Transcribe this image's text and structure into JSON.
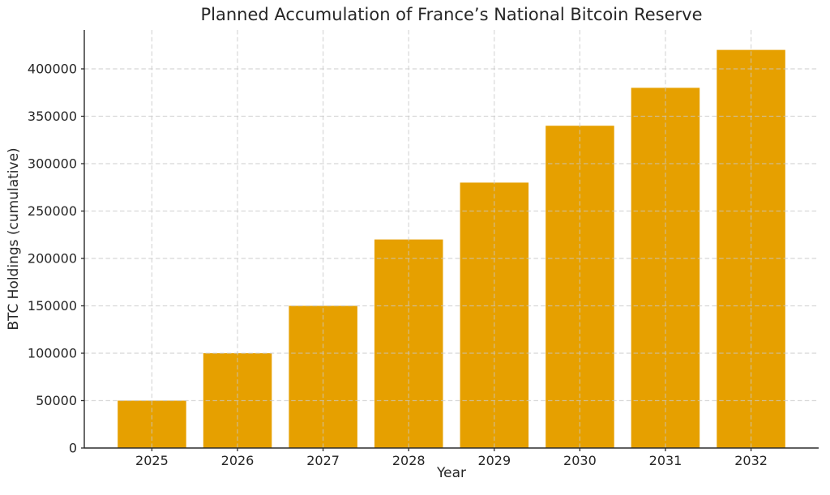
{
  "chart_data": {
    "type": "bar",
    "title": "Planned Accumulation of France’s National Bitcoin Reserve",
    "xlabel": "Year",
    "ylabel": "BTC Holdings (cumulative)",
    "categories": [
      "2025",
      "2026",
      "2027",
      "2028",
      "2029",
      "2030",
      "2031",
      "2032"
    ],
    "values": [
      50000,
      100000,
      150000,
      220000,
      280000,
      340000,
      380000,
      420000
    ],
    "yticks": [
      0,
      50000,
      100000,
      150000,
      200000,
      250000,
      300000,
      350000,
      400000
    ],
    "ylim": [
      0,
      441000
    ],
    "legend": "none",
    "grid": "dashed, horizontal and vertical, drawn over bars",
    "colors": {
      "bar_fill": "#E6A000",
      "text": "#262626",
      "spine": "#2b2b2b",
      "grid": "#c8c8c8",
      "background": "#ffffff"
    }
  }
}
